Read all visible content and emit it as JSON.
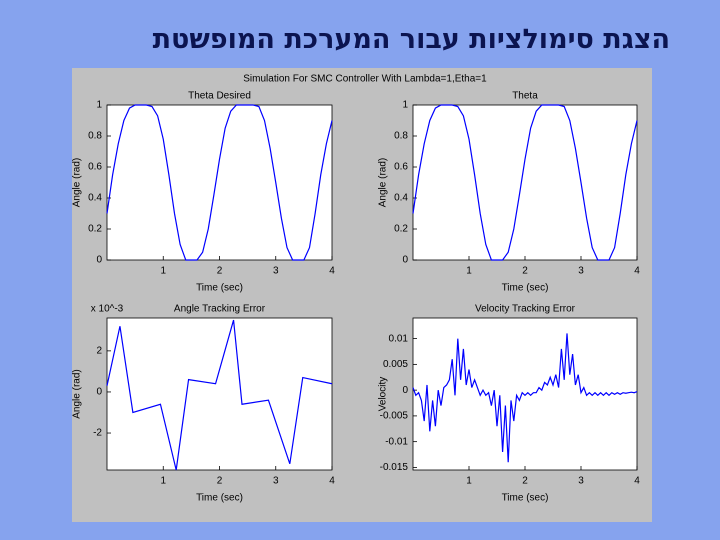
{
  "slide_title": "הצגת סימולציות עבור המערכת המופשטת",
  "figure_title": "Simulation For SMC Controller With Lambda=1,Etha=1",
  "chart_data": [
    {
      "type": "line",
      "title": "Theta Desired",
      "xlabel": "Time (sec)",
      "ylabel": "Angle (rad)",
      "color": "#0000ff",
      "grid": false,
      "xlim": [
        0,
        4
      ],
      "xticks": [
        1,
        2,
        3,
        4
      ],
      "ylim": [
        0,
        1
      ],
      "yticks": [
        0,
        0.2,
        0.4,
        0.6,
        0.8,
        1
      ],
      "x": [
        0,
        0.1,
        0.2,
        0.3,
        0.4,
        0.5,
        0.6,
        0.7,
        0.8,
        0.9,
        1,
        1.1,
        1.2,
        1.3,
        1.4,
        1.5,
        1.6,
        1.7,
        1.8,
        1.9,
        2,
        2.1,
        2.2,
        2.3,
        2.4,
        2.5,
        2.6,
        2.7,
        2.8,
        2.9,
        3,
        3.1,
        3.2,
        3.3,
        3.4,
        3.5,
        3.6,
        3.7,
        3.8,
        3.9,
        4
      ],
      "values": [
        0.3,
        0.55,
        0.75,
        0.9,
        0.98,
        1,
        1,
        1,
        0.99,
        0.93,
        0.78,
        0.55,
        0.3,
        0.1,
        0,
        0,
        0,
        0.05,
        0.2,
        0.42,
        0.65,
        0.85,
        0.96,
        1,
        1,
        1,
        1,
        0.99,
        0.9,
        0.72,
        0.5,
        0.27,
        0.08,
        0,
        0,
        0,
        0.08,
        0.3,
        0.55,
        0.75,
        0.9
      ]
    },
    {
      "type": "line",
      "title": "Theta",
      "xlabel": "Time (sec)",
      "ylabel": "Angle (rad)",
      "color": "#0000ff",
      "grid": false,
      "xlim": [
        0,
        4
      ],
      "xticks": [
        1,
        2,
        3,
        4
      ],
      "ylim": [
        0,
        1
      ],
      "yticks": [
        0,
        0.2,
        0.4,
        0.6,
        0.8,
        1
      ],
      "x": [
        0,
        0.1,
        0.2,
        0.3,
        0.4,
        0.5,
        0.6,
        0.7,
        0.8,
        0.9,
        1,
        1.1,
        1.2,
        1.3,
        1.4,
        1.5,
        1.6,
        1.7,
        1.8,
        1.9,
        2,
        2.1,
        2.2,
        2.3,
        2.4,
        2.5,
        2.6,
        2.7,
        2.8,
        2.9,
        3,
        3.1,
        3.2,
        3.3,
        3.4,
        3.5,
        3.6,
        3.7,
        3.8,
        3.9,
        4
      ],
      "values": [
        0.3,
        0.55,
        0.75,
        0.9,
        0.98,
        1,
        1,
        1,
        0.99,
        0.93,
        0.78,
        0.55,
        0.3,
        0.1,
        0,
        0,
        0,
        0.05,
        0.2,
        0.42,
        0.65,
        0.85,
        0.96,
        1,
        1,
        1,
        1,
        0.99,
        0.9,
        0.72,
        0.5,
        0.27,
        0.08,
        0,
        0,
        0,
        0.08,
        0.3,
        0.55,
        0.75,
        0.9
      ]
    },
    {
      "type": "line",
      "title": "Angle Tracking Error",
      "xlabel": "Time (sec)",
      "ylabel": "Angle (rad)",
      "annotation": "x 10^-3",
      "color": "#0000ff",
      "grid": false,
      "xlim": [
        0,
        4
      ],
      "xticks": [
        1,
        2,
        3,
        4
      ],
      "ylim": [
        -3.8,
        3.6
      ],
      "yticks": [
        -2,
        0,
        2
      ],
      "x": [
        0,
        0.23,
        0.46,
        0.95,
        1.23,
        1.45,
        1.93,
        2.25,
        2.4,
        2.87,
        3.25,
        3.48,
        4
      ],
      "values": [
        0.3,
        3.2,
        -1,
        -0.6,
        -3.8,
        0.6,
        0.4,
        3.5,
        -0.6,
        -0.4,
        -3.5,
        0.7,
        0.4
      ]
    },
    {
      "type": "line",
      "title": "Velocity Tracking Error",
      "xlabel": "Time (sec)",
      "ylabel": "Velocity",
      "color": "#0000ff",
      "grid": false,
      "xlim": [
        0,
        4
      ],
      "xticks": [
        1,
        2,
        3,
        4
      ],
      "ylim": [
        -0.0155,
        0.014
      ],
      "yticks": [
        -0.015,
        -0.01,
        -0.005,
        0,
        0.005,
        0.01
      ],
      "x": [
        0,
        0.05,
        0.1,
        0.15,
        0.2,
        0.25,
        0.3,
        0.35,
        0.4,
        0.45,
        0.5,
        0.55,
        0.6,
        0.65,
        0.7,
        0.75,
        0.8,
        0.85,
        0.9,
        0.95,
        1,
        1.05,
        1.1,
        1.15,
        1.2,
        1.25,
        1.3,
        1.35,
        1.4,
        1.45,
        1.5,
        1.55,
        1.6,
        1.65,
        1.7,
        1.75,
        1.8,
        1.85,
        1.9,
        1.95,
        2,
        2.05,
        2.1,
        2.15,
        2.2,
        2.25,
        2.3,
        2.35,
        2.4,
        2.45,
        2.5,
        2.55,
        2.6,
        2.65,
        2.7,
        2.75,
        2.8,
        2.85,
        2.9,
        2.95,
        3,
        3.05,
        3.1,
        3.15,
        3.2,
        3.25,
        3.3,
        3.35,
        3.4,
        3.45,
        3.5,
        3.55,
        3.6,
        3.65,
        3.7,
        3.75,
        3.8,
        3.85,
        3.9,
        3.95,
        4
      ],
      "values": [
        0.0005,
        -0.001,
        -0.0005,
        -0.002,
        -0.006,
        0.001,
        -0.008,
        -0.002,
        -0.007,
        0,
        -0.003,
        0.0005,
        0.001,
        0.002,
        0.006,
        -0.001,
        0.01,
        0.002,
        0.008,
        0.001,
        0.004,
        0.0005,
        0.002,
        0.0005,
        -0.001,
        0,
        -0.001,
        -0.0005,
        -0.003,
        0,
        -0.007,
        -0.001,
        -0.012,
        -0.003,
        -0.014,
        -0.002,
        -0.006,
        -0.001,
        -0.002,
        -0.0005,
        -0.001,
        -0.0005,
        -0.001,
        -0.0005,
        -0.0005,
        0.0005,
        0,
        0.0015,
        0.001,
        0.0025,
        0.001,
        0.003,
        0.0005,
        0.008,
        0.002,
        0.011,
        0.003,
        0.007,
        0.001,
        0.003,
        -0.0005,
        0.0005,
        -0.001,
        -0.0005,
        -0.001,
        -0.0005,
        -0.001,
        -0.0005,
        -0.001,
        -0.0005,
        -0.001,
        -0.0005,
        -0.0008,
        -0.0005,
        -0.0008,
        -0.0005,
        -0.0006,
        -0.0005,
        -0.0004,
        -0.0005,
        -0.0003
      ]
    }
  ]
}
